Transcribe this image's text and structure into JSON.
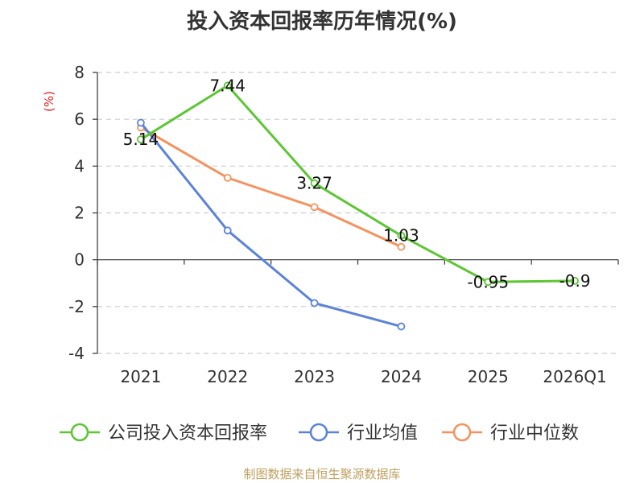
{
  "chart_data": {
    "type": "line",
    "title": "投入资本回报率历年情况(%)",
    "ylabel": "(%)",
    "categories": [
      "2021",
      "2022",
      "2023",
      "2024",
      "2025",
      "2026Q1"
    ],
    "ylim": [
      -4,
      8
    ],
    "yticks": [
      -4,
      -2,
      0,
      2,
      4,
      6,
      8
    ],
    "grid": true,
    "legend_position": "bottom",
    "series": [
      {
        "name": "公司投入资本回报率",
        "color": "#5cc633",
        "values": [
          5.14,
          7.44,
          3.27,
          1.03,
          -0.95,
          -0.9
        ],
        "labels": [
          "5.14",
          "7.44",
          "3.27",
          "1.03",
          "-0.95",
          "-0.9"
        ]
      },
      {
        "name": "行业均值",
        "color": "#5b83d9",
        "values": [
          5.85,
          1.25,
          -1.85,
          -2.85,
          null,
          null
        ]
      },
      {
        "name": "行业中位数",
        "color": "#f5925e",
        "values": [
          5.65,
          3.5,
          2.25,
          0.55,
          null,
          null
        ]
      }
    ]
  },
  "source": "制图数据来自恒生聚源数据库"
}
